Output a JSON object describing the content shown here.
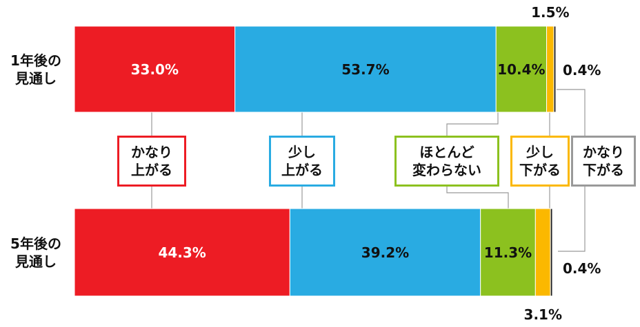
{
  "chart_data": {
    "type": "stacked-bar-horizontal",
    "categories": [
      "1年後の\n見通し",
      "5年後の\n見通し"
    ],
    "series": [
      {
        "name": "かなり\n上がる",
        "color": "#ed1c24",
        "values": [
          33.0,
          44.3
        ],
        "value_labels": [
          "33.0%",
          "44.3%"
        ]
      },
      {
        "name": "少し\n上がる",
        "color": "#29abe2",
        "values": [
          53.7,
          39.2
        ],
        "value_labels": [
          "53.7%",
          "39.2%"
        ]
      },
      {
        "name": "ほとんど\n変わらない",
        "color": "#8cc11f",
        "values": [
          10.4,
          11.3
        ],
        "value_labels": [
          "10.4%",
          "11.3%"
        ]
      },
      {
        "name": "少し\n下がる",
        "color": "#fbb800",
        "values": [
          1.5,
          3.1
        ],
        "value_labels": [
          "1.5%",
          "3.1%"
        ]
      },
      {
        "name": "かなり\n下がる",
        "color": "#1a1a1a",
        "values": [
          0.4,
          0.4
        ],
        "value_labels": [
          "0.4%",
          "0.4%"
        ]
      }
    ]
  }
}
